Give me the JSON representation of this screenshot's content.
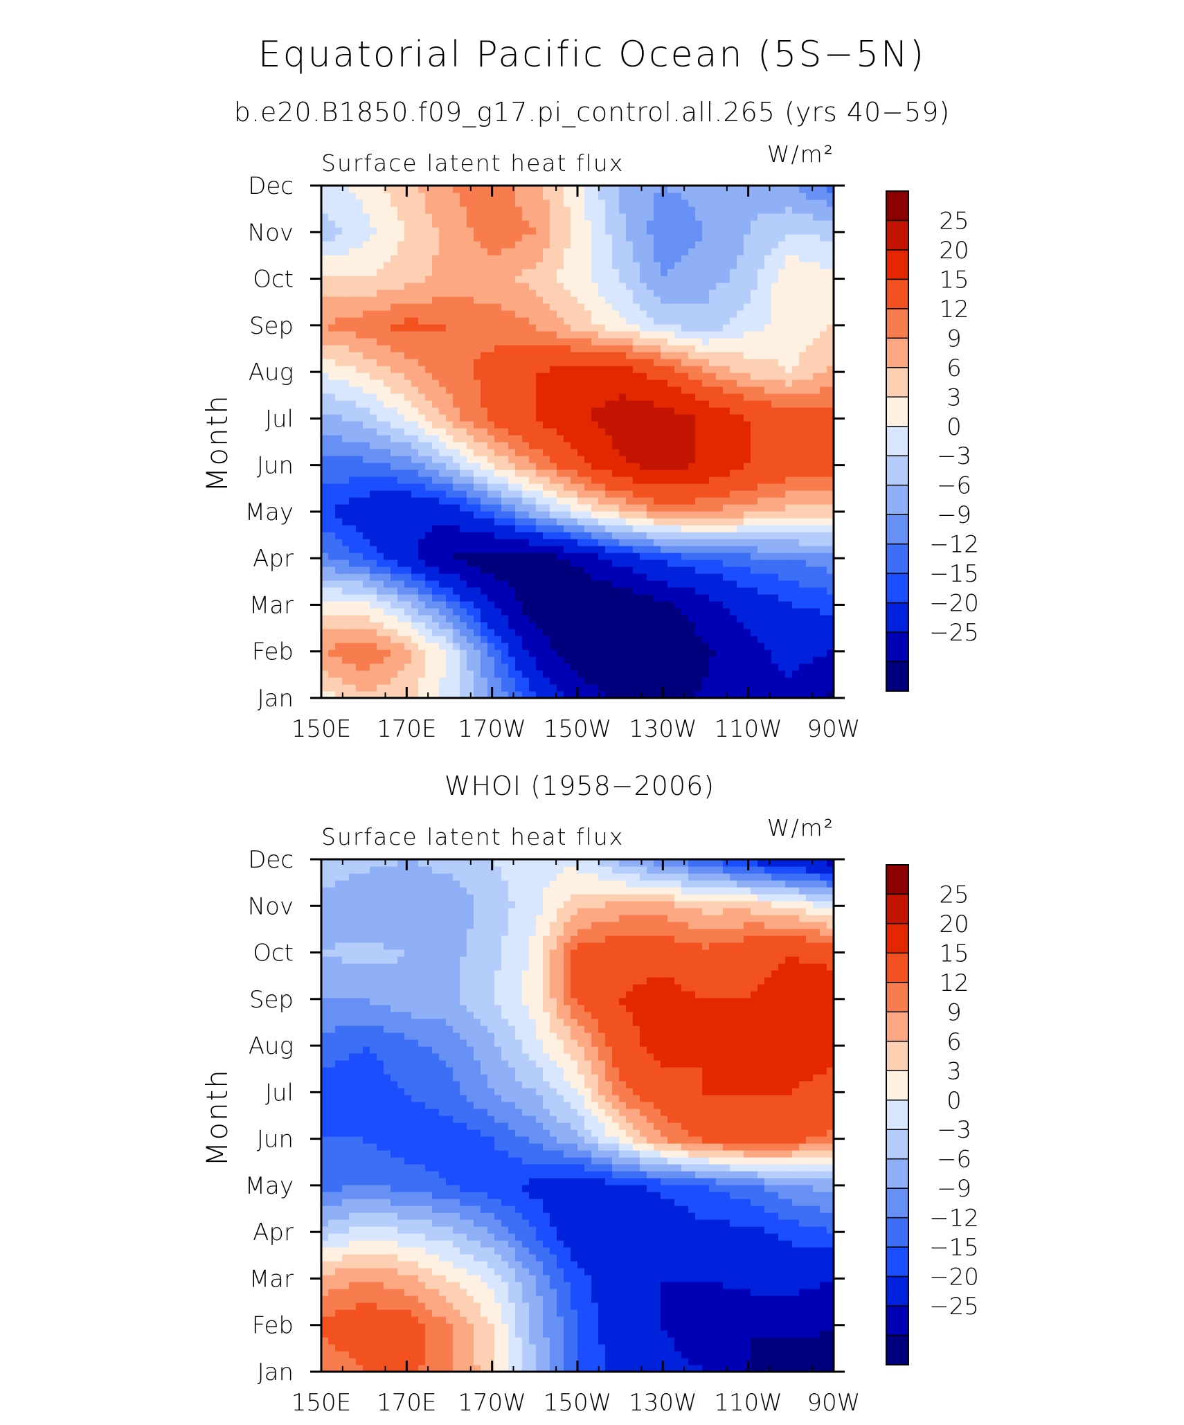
{
  "title": "Equatorial Pacific Ocean (5S−5N)",
  "colors": [
    "#00007e",
    "#0000b4",
    "#0022dc",
    "#1b4eff",
    "#3d6ef6",
    "#6690f4",
    "#8fb0f6",
    "#b4cdfa",
    "#d8e7fd",
    "#fff1e2",
    "#fdd0b3",
    "#fca882",
    "#f77d4f",
    "#f2521f",
    "#e32800",
    "#c21400",
    "#8c0000"
  ],
  "chart_data": [
    {
      "type": "heatmap",
      "heading": "b.e20.B1850.f09_g17.pi_control.all.265 (yrs 40−59)",
      "field_label": "Surface latent heat flux",
      "units": "W/m²",
      "ylabel": "Month",
      "x_ticks": [
        "150E",
        "170E",
        "170W",
        "150W",
        "130W",
        "110W",
        "90W"
      ],
      "y_ticks": [
        "Jan",
        "Feb",
        "Mar",
        "Apr",
        "May",
        "Jun",
        "Jul",
        "Aug",
        "Sep",
        "Oct",
        "Nov",
        "Dec"
      ],
      "levels": [
        "25",
        "20",
        "15",
        "12",
        "9",
        "6",
        "3",
        "0",
        "−3",
        "−6",
        "−9",
        "−12",
        "−15",
        "−20",
        "−25"
      ],
      "x": [
        "150E",
        "160E",
        "170E",
        "180",
        "170W",
        "160W",
        "150W",
        "140W",
        "130W",
        "120W",
        "110W",
        "100W",
        "90W"
      ],
      "y": [
        "Jan",
        "Feb",
        "Mar",
        "Apr",
        "May",
        "Jun",
        "Jul",
        "Aug",
        "Sep",
        "Oct",
        "Nov",
        "Dec"
      ],
      "z": [
        [
          4,
          8,
          7,
          2,
          -6,
          -14,
          -22,
          -26,
          -28,
          -24,
          -20,
          -22,
          -26
        ],
        [
          12,
          15,
          10,
          2,
          -10,
          -22,
          -28,
          -30,
          -30,
          -26,
          -22,
          -18,
          -20
        ],
        [
          5,
          4,
          -2,
          -10,
          -20,
          -28,
          -30,
          -30,
          -26,
          -22,
          -18,
          -15,
          -14
        ],
        [
          -8,
          -12,
          -18,
          -25,
          -28,
          -28,
          -24,
          -18,
          -14,
          -12,
          -10,
          -9,
          -7
        ],
        [
          -14,
          -18,
          -20,
          -18,
          -12,
          -4,
          3,
          8,
          12,
          12,
          10,
          8,
          7
        ],
        [
          -10,
          -10,
          -8,
          -2,
          6,
          12,
          18,
          24,
          27,
          24,
          20,
          18,
          17
        ],
        [
          -4,
          -2,
          3,
          10,
          16,
          20,
          24,
          28,
          28,
          24,
          20,
          18,
          17
        ],
        [
          3,
          6,
          10,
          14,
          16,
          20,
          22,
          22,
          18,
          12,
          8,
          6,
          10
        ],
        [
          12,
          14,
          16,
          15,
          14,
          12,
          8,
          4,
          0,
          -2,
          2,
          4,
          6
        ],
        [
          7,
          6,
          8,
          10,
          10,
          8,
          4,
          0,
          -6,
          -4,
          -2,
          6,
          4
        ],
        [
          -2,
          2,
          6,
          10,
          14,
          12,
          5,
          -2,
          -8,
          -6,
          -3,
          0,
          -1
        ],
        [
          2,
          4,
          8,
          12,
          14,
          10,
          4,
          -4,
          -6,
          -5,
          -4,
          -6,
          -10
        ]
      ]
    },
    {
      "type": "heatmap",
      "heading": "WHOI (1958−2006)",
      "field_label": "Surface latent heat flux",
      "units": "W/m²",
      "ylabel": "Month",
      "x_ticks": [
        "150E",
        "170E",
        "170W",
        "150W",
        "130W",
        "110W",
        "90W"
      ],
      "y_ticks": [
        "Jan",
        "Feb",
        "Mar",
        "Apr",
        "May",
        "Jun",
        "Jul",
        "Aug",
        "Sep",
        "Oct",
        "Nov",
        "Dec"
      ],
      "levels": [
        "25",
        "20",
        "15",
        "12",
        "9",
        "6",
        "3",
        "0",
        "−3",
        "−6",
        "−9",
        "−12",
        "−15",
        "−20",
        "−25"
      ],
      "x": [
        "150E",
        "160E",
        "170E",
        "180",
        "170W",
        "160W",
        "150W",
        "140W",
        "130W",
        "120W",
        "110W",
        "100W",
        "90W"
      ],
      "y": [
        "Jan",
        "Feb",
        "Mar",
        "Apr",
        "May",
        "Jun",
        "Jul",
        "Aug",
        "Sep",
        "Oct",
        "Nov",
        "Dec"
      ],
      "z": [
        [
          12,
          15,
          16,
          13,
          7,
          -3,
          -12,
          -16,
          -18,
          -20,
          -25,
          -28,
          -30
        ],
        [
          16,
          18,
          17,
          12,
          6,
          -4,
          -12,
          -18,
          -20,
          -24,
          -25,
          -24,
          -24
        ],
        [
          10,
          12,
          10,
          6,
          2,
          -6,
          -14,
          -18,
          -20,
          -20,
          -18,
          -18,
          -20
        ],
        [
          -2,
          2,
          0,
          -2,
          -6,
          -12,
          -18,
          -20,
          -18,
          -16,
          -16,
          -14,
          -12
        ],
        [
          -10,
          -9,
          -10,
          -12,
          -14,
          -16,
          -18,
          -16,
          -14,
          -12,
          -10,
          -6,
          -5
        ],
        [
          -12,
          -12,
          -14,
          -14,
          -12,
          -8,
          -4,
          4,
          12,
          16,
          18,
          16,
          14
        ],
        [
          -14,
          -14,
          -12,
          -10,
          -6,
          -3,
          3,
          14,
          18,
          20,
          20,
          20,
          18
        ],
        [
          -10,
          -12,
          -10,
          -8,
          -4,
          2,
          8,
          18,
          22,
          20,
          20,
          22,
          22
        ],
        [
          -6,
          -6,
          -4,
          -4,
          0,
          4,
          16,
          20,
          22,
          20,
          20,
          22,
          24
        ],
        [
          -3,
          -2,
          -3,
          -4,
          -1,
          4,
          16,
          18,
          18,
          16,
          18,
          20,
          18
        ],
        [
          -4,
          -6,
          -6,
          -5,
          -2,
          2,
          8,
          10,
          10,
          8,
          8,
          6,
          2
        ],
        [
          -1,
          -2,
          -3,
          -2,
          0,
          2,
          2,
          -4,
          -8,
          -12,
          -16,
          -20,
          -22
        ]
      ]
    }
  ]
}
